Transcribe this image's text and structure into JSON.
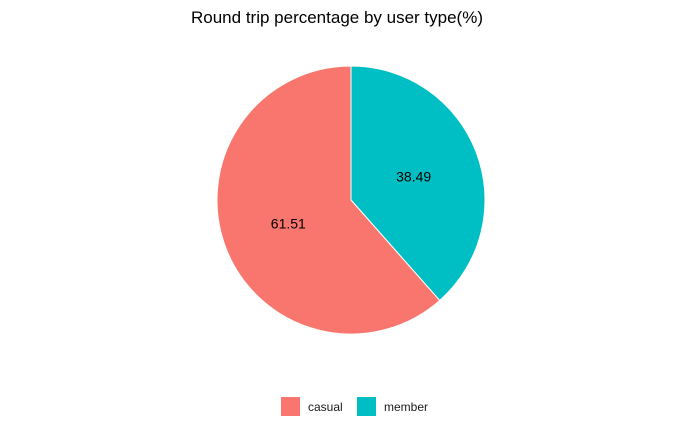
{
  "chart_data": {
    "type": "pie",
    "title": "Round trip percentage by user type(%)",
    "categories": [
      "casual",
      "member"
    ],
    "values": [
      61.51,
      38.49
    ],
    "data_labels": [
      "61.51",
      "38.49"
    ],
    "colors": [
      "#F8766D",
      "#00BFC4"
    ],
    "legend": {
      "position": "bottom",
      "entries": [
        "casual",
        "member"
      ]
    },
    "start_angle_deg": 0,
    "direction": "counterclockwise"
  }
}
